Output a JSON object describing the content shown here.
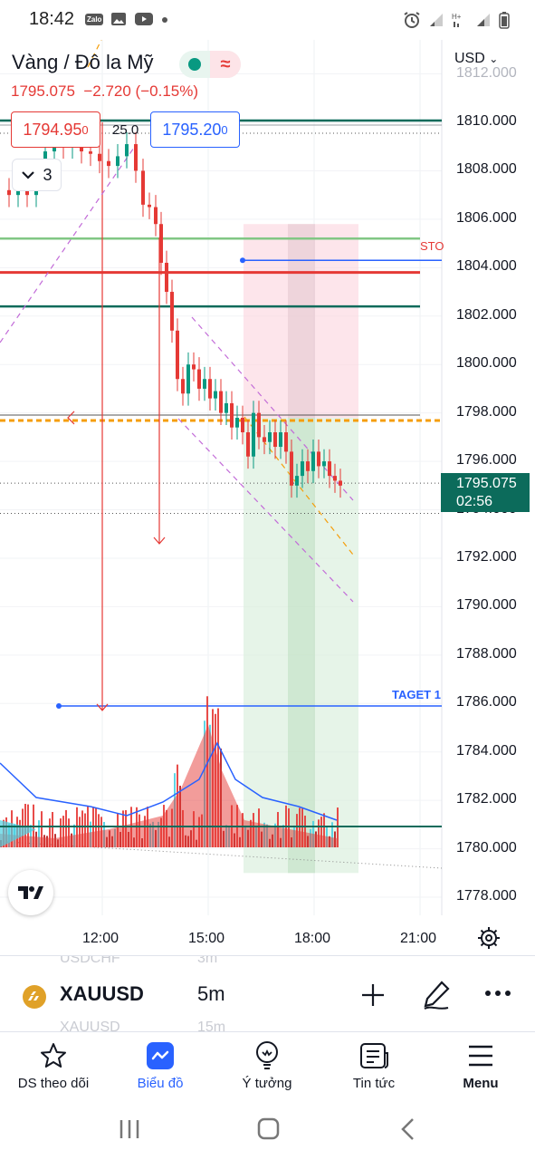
{
  "status_bar": {
    "time": "18:42",
    "zalo": "Zalo"
  },
  "header": {
    "title": "Vàng / Đô la Mỹ",
    "last_price": "1795.075",
    "change": "−2.720 (−0.15%)",
    "currency": "USD",
    "bid": "1794.95",
    "bid_sup": "0",
    "spread": "25.0",
    "ask": "1795.20",
    "ask_sup": "0",
    "indicators_count": "3"
  },
  "chart_labels": {
    "stop": "STO",
    "target": "TAGET 1"
  },
  "chart_data": {
    "type": "candlestick",
    "title": "Vàng / Đô la Mỹ",
    "interval": "5m",
    "price_axis": [
      "1812.000",
      "1810.000",
      "1808.000",
      "1806.000",
      "1804.000",
      "1802.000",
      "1800.000",
      "1798.000",
      "1796.000",
      "1794.000",
      "1792.000",
      "1790.000",
      "1788.000",
      "1786.000",
      "1784.000",
      "1782.000",
      "1780.000",
      "1778.000"
    ],
    "time_axis": [
      "12:00",
      "15:00",
      "18:00",
      "21:00"
    ],
    "current_price": "1795.075",
    "countdown": "02:56",
    "ylim": [
      1777.5,
      1812.5
    ],
    "levels": {
      "stop": 1804.3,
      "target": 1785.9,
      "orange_dashed": 1797.8,
      "red": 1803.8,
      "teal": 1802.4,
      "green": 1805.2,
      "top": 1810.0
    }
  },
  "toolbar": {
    "symbol": "XAUUSD",
    "interval": "5m",
    "ghost_prev_symbol": "USDCHF",
    "ghost_prev_interval": "3m",
    "ghost_next_symbol": "XAUUSD",
    "ghost_next_interval": "15m"
  },
  "nav": [
    {
      "label": "DS theo dõi",
      "icon": "star-icon"
    },
    {
      "label": "Biểu đồ",
      "icon": "chart-icon"
    },
    {
      "label": "Ý tưởng",
      "icon": "lightbulb-icon"
    },
    {
      "label": "Tin tức",
      "icon": "news-icon"
    },
    {
      "label": "Menu",
      "icon": "menu-icon"
    }
  ],
  "colors": {
    "accent": "#2962ff",
    "down": "#e53935",
    "up": "#089981",
    "price_tag": "#0c6b5b"
  }
}
